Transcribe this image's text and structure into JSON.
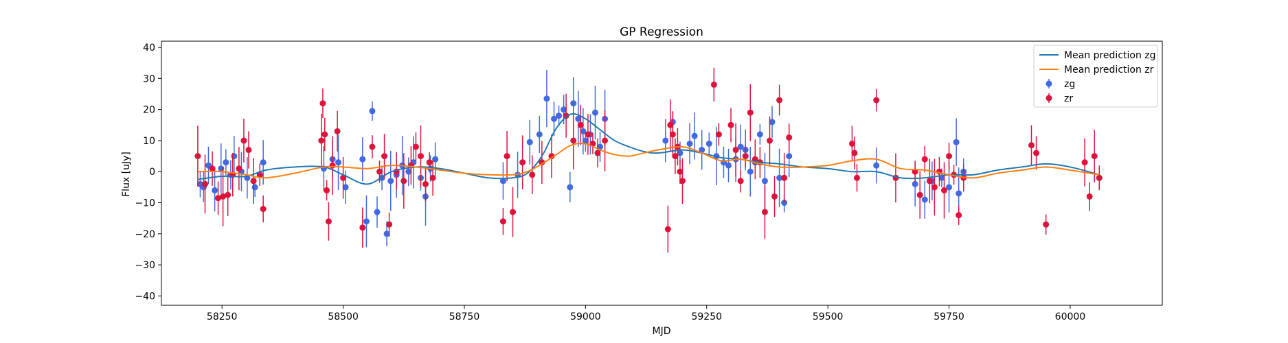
{
  "chart_data": {
    "type": "scatter",
    "title": "GP Regression",
    "xlabel": "MJD",
    "ylabel": "Flux [uJy]",
    "xlim": [
      58125,
      60190
    ],
    "ylim": [
      -43,
      42
    ],
    "xticks": [
      58250,
      58500,
      58750,
      59000,
      59250,
      59500,
      59750,
      60000
    ],
    "yticks": [
      -40,
      -30,
      -20,
      -10,
      0,
      10,
      20,
      30,
      40
    ],
    "grid": false,
    "legend_position": "top-right",
    "legend": [
      "Mean prediction zg",
      "Mean prediction zr",
      "zg",
      "zr"
    ],
    "colors": {
      "mean_zg": "#1f77b4",
      "mean_zr": "#ff7f0e",
      "zg": "#4169e1",
      "zr": "#dc143c"
    },
    "lines": [
      {
        "name": "Mean prediction zg",
        "color": "#1f77b4",
        "x": [
          58200,
          58250,
          58300,
          58340,
          58400,
          58460,
          58500,
          58550,
          58600,
          58650,
          58700,
          58750,
          58800,
          58850,
          58880,
          58910,
          58940,
          58970,
          59000,
          59030,
          59060,
          59090,
          59120,
          59150,
          59200,
          59240,
          59280,
          59320,
          59360,
          59400,
          59450,
          59500,
          59550,
          59600,
          59650,
          59700,
          59750,
          59800,
          59850,
          59900,
          59950,
          60000,
          60060
        ],
        "y": [
          -2.5,
          -1.5,
          -1.5,
          0.5,
          1.5,
          1.5,
          -1,
          -4,
          0,
          1.5,
          1,
          -0.5,
          -2,
          -2,
          -0.5,
          5,
          14,
          18.5,
          17,
          13.5,
          10,
          8,
          6.5,
          6,
          7,
          6,
          4.5,
          4,
          3,
          2.5,
          1.5,
          1,
          0,
          0,
          -2,
          -2,
          -1,
          -1,
          0.5,
          1.5,
          2.5,
          1.5,
          -1
        ]
      },
      {
        "name": "Mean prediction zr",
        "color": "#ff7f0e",
        "x": [
          58200,
          58250,
          58300,
          58340,
          58400,
          58460,
          58500,
          58550,
          58600,
          58650,
          58700,
          58750,
          58800,
          58850,
          58880,
          58910,
          58940,
          58970,
          59000,
          59030,
          59060,
          59090,
          59120,
          59150,
          59200,
          59240,
          59280,
          59320,
          59360,
          59400,
          59450,
          59500,
          59550,
          59600,
          59650,
          59700,
          59750,
          59800,
          59850,
          59900,
          59950,
          60000,
          60060
        ],
        "y": [
          0,
          0,
          -1,
          -2,
          -0.5,
          1.5,
          1.5,
          1,
          2,
          1.5,
          0.5,
          -0.5,
          -1,
          -1,
          0,
          2.5,
          5.5,
          8.5,
          9,
          7,
          5.5,
          5,
          6,
          7,
          8,
          6,
          3.5,
          4,
          2.5,
          1.5,
          1.5,
          2,
          3.5,
          4,
          1,
          0.5,
          -1,
          -2,
          -0.5,
          0.5,
          1.5,
          0.5,
          -1
        ]
      }
    ],
    "series": [
      {
        "name": "zg",
        "color": "#4169e1",
        "x": [
          58205,
          58212,
          58222,
          58235,
          58248,
          58258,
          58268,
          58275,
          58290,
          58302,
          58318,
          58335,
          58460,
          58478,
          58490,
          58505,
          58540,
          58548,
          58560,
          58570,
          58580,
          58590,
          58598,
          58610,
          58622,
          58635,
          58645,
          58660,
          58670,
          58680,
          58690,
          58830,
          58860,
          58885,
          58905,
          58920,
          58935,
          58945,
          58955,
          58968,
          58975,
          58985,
          58995,
          59000,
          59010,
          59020,
          59030,
          59040,
          59165,
          59180,
          59195,
          59215,
          59225,
          59240,
          59255,
          59270,
          59285,
          59295,
          59310,
          59320,
          59330,
          59340,
          59350,
          59360,
          59370,
          59385,
          59400,
          59410,
          59420,
          59600,
          59680,
          59700,
          59715,
          59735,
          59750,
          59765,
          59770,
          59780,
          60060
        ],
        "y": [
          -4,
          -5,
          2,
          -6,
          1,
          3,
          -1,
          5,
          0,
          -2,
          -5,
          3,
          1,
          4,
          3,
          -5,
          4,
          -16,
          19.5,
          -13,
          -2,
          -20,
          -3,
          -1,
          2,
          0,
          3,
          -2,
          -8,
          1,
          4,
          -3,
          -1,
          9.5,
          12,
          23.5,
          17,
          18,
          20,
          -5,
          22,
          17,
          13,
          10,
          12,
          19,
          8,
          17,
          10,
          16,
          6,
          9,
          11.5,
          7,
          9,
          5,
          3,
          2,
          4,
          8,
          7,
          0,
          3,
          12,
          -3,
          16,
          -2,
          -10,
          5,
          2,
          -4,
          -9,
          -3,
          -2,
          -5,
          9.5,
          -7,
          0,
          -2
        ]
      },
      {
        "name": "zr",
        "color": "#dc143c",
        "x": [
          58200,
          58215,
          58230,
          58242,
          58252,
          58262,
          58272,
          58285,
          58295,
          58305,
          58315,
          58328,
          58335,
          58455,
          58458,
          58462,
          58466,
          58470,
          58478,
          58488,
          58500,
          58540,
          58560,
          58575,
          58585,
          58595,
          58610,
          58625,
          58640,
          58650,
          58660,
          58670,
          58678,
          58685,
          58830,
          58838,
          58850,
          58870,
          58890,
          58910,
          58930,
          58960,
          58975,
          58990,
          59005,
          59015,
          59025,
          59040,
          59170,
          59175,
          59180,
          59185,
          59190,
          59195,
          59200,
          59265,
          59275,
          59300,
          59310,
          59320,
          59330,
          59340,
          59350,
          59360,
          59370,
          59380,
          59390,
          59400,
          59410,
          59420,
          59550,
          59555,
          59560,
          59600,
          59640,
          59680,
          59690,
          59700,
          59710,
          59720,
          59730,
          59740,
          59750,
          59760,
          59770,
          59780,
          59920,
          59930,
          59950,
          60030,
          60040,
          60050,
          60060
        ],
        "y": [
          5,
          -4,
          1,
          -8.5,
          -8,
          -7.5,
          -1,
          1,
          10,
          7,
          -3,
          -1,
          -12,
          10,
          22,
          12,
          -6,
          -16,
          2,
          13,
          -2,
          -18,
          8,
          0,
          5,
          -17,
          0,
          -3,
          2,
          8,
          5,
          -4,
          3,
          -2,
          -16,
          5,
          -13,
          3,
          -1,
          3,
          5,
          18,
          10,
          15,
          12,
          9,
          6,
          10,
          -18.5,
          15,
          12,
          5,
          8,
          0,
          -3,
          28,
          12,
          15,
          7,
          -3,
          5,
          19,
          4,
          3,
          -13,
          10,
          -8,
          23,
          -2,
          11,
          9,
          6,
          -2,
          23,
          -2,
          0,
          -7.5,
          4,
          -3,
          -5,
          0,
          -6,
          5,
          -1,
          -14,
          -2,
          8.5,
          6,
          -17,
          3,
          -8,
          5,
          -2
        ]
      }
    ]
  }
}
